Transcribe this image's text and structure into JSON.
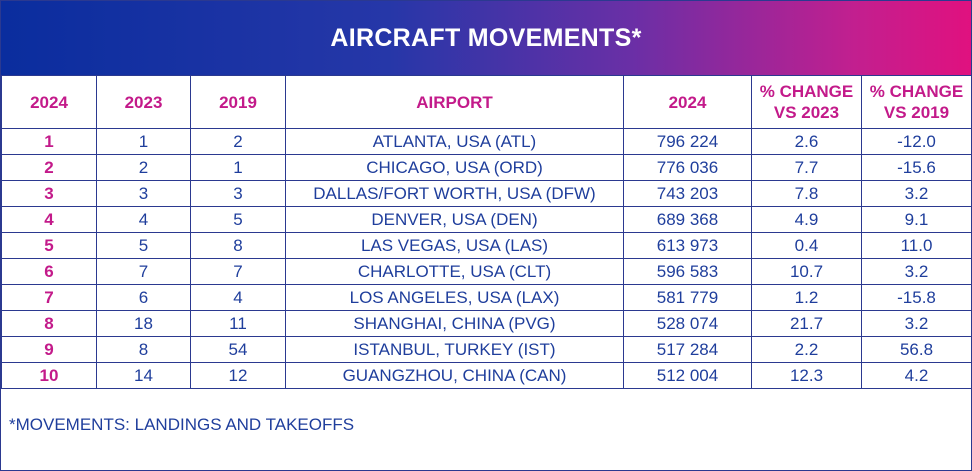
{
  "title": "AIRCRAFT MOVEMENTS*",
  "headers": [
    "2024",
    "2023",
    "2019",
    "AIRPORT",
    "2024",
    "% CHANGE VS 2023",
    "% CHANGE VS 2019"
  ],
  "header_lines": [
    [
      "2024"
    ],
    [
      "2023"
    ],
    [
      "2019"
    ],
    [
      "AIRPORT"
    ],
    [
      "2024"
    ],
    [
      "% CHANGE",
      "VS 2023"
    ],
    [
      "% CHANGE",
      "VS 2019"
    ]
  ],
  "rows": [
    [
      "1",
      "1",
      "2",
      "ATLANTA, USA (ATL)",
      "796 224",
      "2.6",
      "-12.0"
    ],
    [
      "2",
      "2",
      "1",
      "CHICAGO, USA (ORD)",
      "776 036",
      "7.7",
      "-15.6"
    ],
    [
      "3",
      "3",
      "3",
      "DALLAS/FORT WORTH, USA (DFW)",
      "743 203",
      "7.8",
      "3.2"
    ],
    [
      "4",
      "4",
      "5",
      "DENVER, USA (DEN)",
      "689 368",
      "4.9",
      "9.1"
    ],
    [
      "5",
      "5",
      "8",
      "LAS VEGAS, USA (LAS)",
      "613 973",
      "0.4",
      "11.0"
    ],
    [
      "6",
      "7",
      "7",
      "CHARLOTTE, USA (CLT)",
      "596 583",
      "10.7",
      "3.2"
    ],
    [
      "7",
      "6",
      "4",
      "LOS ANGELES, USA (LAX)",
      "581 779",
      "1.2",
      "-15.8"
    ],
    [
      "8",
      "18",
      "11",
      "SHANGHAI, CHINA (PVG)",
      "528 074",
      "21.7",
      "3.2"
    ],
    [
      "9",
      "8",
      "54",
      "ISTANBUL, TURKEY (IST)",
      "517 284",
      "2.2",
      "56.8"
    ],
    [
      "10",
      "14",
      "12",
      "GUANGZHOU, CHINA (CAN)",
      "512 004",
      "12.3",
      "4.2"
    ]
  ],
  "footnote": "*MOVEMENTS: LANDINGS AND TAKEOFFS",
  "colors": {
    "banner_start": "#0a2d9e",
    "banner_end": "#e0117f",
    "header_text": "#c31a8a",
    "body_text": "#1f3e9c",
    "border": "#2b3990"
  }
}
